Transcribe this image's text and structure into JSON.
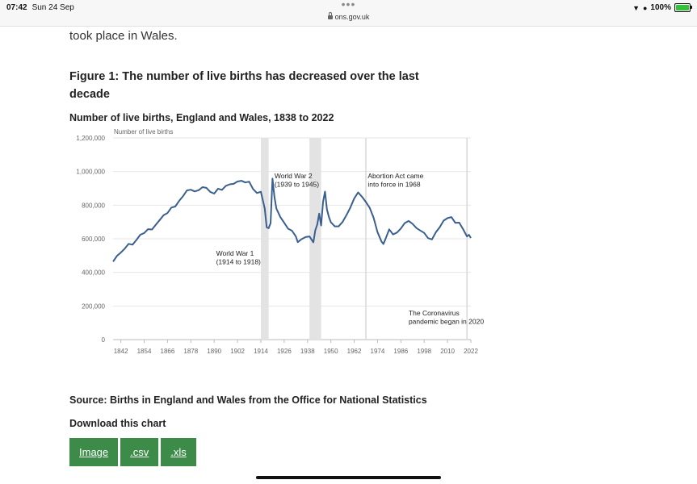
{
  "status_bar": {
    "time": "07:42",
    "date": "Sun 24 Sep",
    "url": "ons.gov.uk",
    "battery": "100%",
    "icons": [
      "wifi-icon",
      "alarm-icon",
      "battery-charging-icon",
      "lock-icon"
    ]
  },
  "page": {
    "intro_text": "took place in Wales.",
    "figure_title": "Figure 1: The number of live births has decreased over the last decade",
    "chart_title": "Number of live births, England and Wales, 1838 to 2022",
    "source": "Source: Births in England and Wales from the Office for National Statistics",
    "download_title": "Download this chart",
    "downloads": [
      {
        "label": "Image"
      },
      {
        "label": ".csv"
      },
      {
        "label": ".xls"
      }
    ]
  },
  "colors": {
    "line": "#3a5f8f",
    "button": "#3d8b48",
    "band": "#e3e3e3"
  },
  "chart_data": {
    "type": "line",
    "ylabel": "Number of live births",
    "ylim": [
      0,
      1200000
    ],
    "xlim": [
      1838,
      2022
    ],
    "yticks": [
      0,
      200000,
      400000,
      600000,
      800000,
      1000000,
      1200000
    ],
    "ytick_labels": [
      "0",
      "200,000",
      "400,000",
      "600,000",
      "800,000",
      "1,000,000",
      "1,200,000"
    ],
    "xticks": [
      1842,
      1854,
      1866,
      1878,
      1890,
      1902,
      1914,
      1926,
      1938,
      1950,
      1962,
      1974,
      1986,
      1998,
      2010,
      2022
    ],
    "grid": true,
    "shaded_periods": [
      {
        "start": 1914,
        "end": 1918
      },
      {
        "start": 1939,
        "end": 1945
      }
    ],
    "reference_lines": [
      1968,
      2020
    ],
    "annotations": [
      {
        "lines": [
          "World War 1",
          "(1914 to 1918)"
        ],
        "x": 1891,
        "y": 500000
      },
      {
        "lines": [
          "World War 2",
          "(1939 to 1945)"
        ],
        "x": 1921,
        "y": 960000
      },
      {
        "lines": [
          "Abortion Act came",
          "into force in 1968"
        ],
        "x": 1969,
        "y": 960000
      },
      {
        "lines": [
          "The Coronavirus",
          "pandemic began in 2020"
        ],
        "x": 1990,
        "y": 145000
      }
    ],
    "series": [
      {
        "x": [
          1838,
          1840,
          1842,
          1844,
          1846,
          1848,
          1850,
          1852,
          1854,
          1856,
          1858,
          1860,
          1862,
          1864,
          1866,
          1868,
          1870,
          1872,
          1874,
          1876,
          1878,
          1880,
          1882,
          1884,
          1886,
          1888,
          1890,
          1892,
          1894,
          1896,
          1898,
          1900,
          1902,
          1904,
          1906,
          1908,
          1910,
          1912,
          1914,
          1916,
          1917,
          1918,
          1919,
          1920,
          1921,
          1922,
          1924,
          1926,
          1928,
          1930,
          1932,
          1933,
          1935,
          1937,
          1939,
          1941,
          1942,
          1943,
          1944,
          1945,
          1946,
          1947,
          1948,
          1949,
          1950,
          1952,
          1954,
          1956,
          1958,
          1960,
          1962,
          1964,
          1966,
          1968,
          1970,
          1972,
          1974,
          1976,
          1977,
          1978,
          1980,
          1982,
          1984,
          1986,
          1988,
          1990,
          1992,
          1994,
          1996,
          1998,
          2000,
          2002,
          2004,
          2006,
          2008,
          2010,
          2012,
          2014,
          2016,
          2018,
          2020,
          2021,
          2022
        ],
        "values": [
          464000,
          498000,
          518000,
          541000,
          570000,
          565000,
          593000,
          624000,
          634000,
          657000,
          655000,
          684000,
          712000,
          740000,
          753000,
          786000,
          792000,
          826000,
          854000,
          888000,
          892000,
          882000,
          889000,
          907000,
          903000,
          879000,
          869000,
          898000,
          891000,
          915000,
          924000,
          927000,
          941000,
          945000,
          935000,
          940000,
          896000,
          872000,
          880000,
          780000,
          668000,
          663000,
          692000,
          958000,
          849000,
          780000,
          729000,
          695000,
          660000,
          648000,
          614000,
          580000,
          598000,
          610000,
          614000,
          579000,
          651000,
          685000,
          750000,
          679000,
          820000,
          881000,
          775000,
          730000,
          698000,
          674000,
          674000,
          700000,
          740000,
          785000,
          839000,
          876000,
          850000,
          819000,
          784000,
          725000,
          640000,
          584000,
          569000,
          596000,
          656000,
          626000,
          637000,
          661000,
          693000,
          706000,
          689000,
          664000,
          649000,
          635000,
          604000,
          596000,
          639000,
          669000,
          708000,
          723000,
          729000,
          695000,
          696000,
          657000,
          614000,
          624000,
          605000
        ]
      }
    ]
  }
}
